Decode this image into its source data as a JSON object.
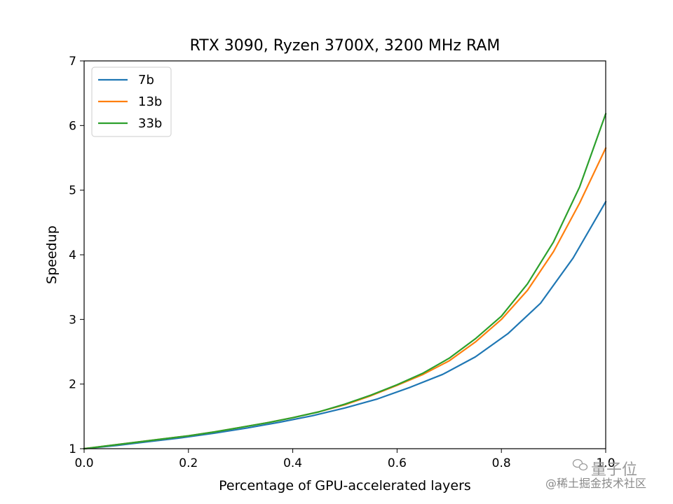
{
  "chart_data": {
    "type": "line",
    "title": "RTX 3090, Ryzen 3700X, 3200 MHz RAM",
    "xlabel": "Percentage of GPU-accelerated layers",
    "ylabel": "Speedup",
    "xlim": [
      0.0,
      1.0
    ],
    "ylim": [
      1,
      7
    ],
    "xticks": [
      "0.0",
      "0.2",
      "0.4",
      "0.6",
      "0.8",
      "1.0"
    ],
    "yticks": [
      "1",
      "2",
      "3",
      "4",
      "5",
      "6",
      "7"
    ],
    "grid": false,
    "legend_position": "top-left",
    "series": [
      {
        "name": "7b",
        "color": "#1f77b4",
        "x": [
          0.0,
          0.0625,
          0.125,
          0.1875,
          0.25,
          0.3125,
          0.375,
          0.4375,
          0.5,
          0.5625,
          0.625,
          0.6875,
          0.75,
          0.8125,
          0.875,
          0.9375,
          1.0
        ],
        "y": [
          1.0,
          1.05,
          1.11,
          1.17,
          1.24,
          1.32,
          1.41,
          1.51,
          1.63,
          1.77,
          1.95,
          2.15,
          2.42,
          2.78,
          3.25,
          3.95,
          4.82
        ]
      },
      {
        "name": "13b",
        "color": "#ff7f0e",
        "x": [
          0.0,
          0.05,
          0.1,
          0.15,
          0.2,
          0.25,
          0.3,
          0.35,
          0.4,
          0.45,
          0.5,
          0.55,
          0.6,
          0.65,
          0.7,
          0.75,
          0.8,
          0.85,
          0.9,
          0.95,
          1.0
        ],
        "y": [
          1.0,
          1.05,
          1.1,
          1.15,
          1.2,
          1.26,
          1.33,
          1.4,
          1.48,
          1.57,
          1.68,
          1.82,
          1.98,
          2.15,
          2.36,
          2.65,
          3.0,
          3.45,
          4.05,
          4.8,
          5.65
        ]
      },
      {
        "name": "33b",
        "color": "#2ca02c",
        "x": [
          0.0,
          0.05,
          0.1,
          0.15,
          0.2,
          0.25,
          0.3,
          0.35,
          0.4,
          0.45,
          0.5,
          0.55,
          0.6,
          0.65,
          0.7,
          0.75,
          0.8,
          0.85,
          0.9,
          0.95,
          1.0
        ],
        "y": [
          1.0,
          1.05,
          1.1,
          1.15,
          1.2,
          1.26,
          1.33,
          1.4,
          1.48,
          1.57,
          1.69,
          1.83,
          1.99,
          2.17,
          2.4,
          2.7,
          3.05,
          3.55,
          4.2,
          5.05,
          6.18
        ]
      }
    ]
  },
  "watermark": {
    "brand": "量子位",
    "community": "@稀土掘金技术社区"
  }
}
